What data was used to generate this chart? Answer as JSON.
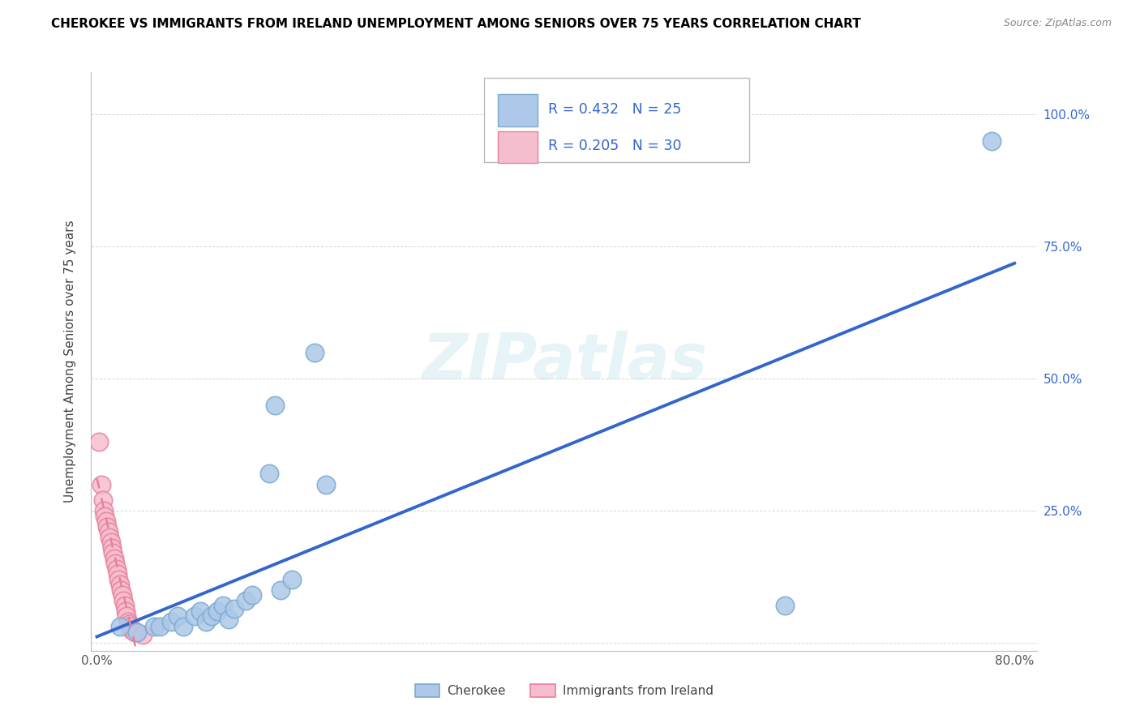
{
  "title": "CHEROKEE VS IMMIGRANTS FROM IRELAND UNEMPLOYMENT AMONG SENIORS OVER 75 YEARS CORRELATION CHART",
  "source": "Source: ZipAtlas.com",
  "ylabel": "Unemployment Among Seniors over 75 years",
  "xlim": [
    -0.005,
    0.82
  ],
  "ylim": [
    -0.015,
    1.08
  ],
  "xtick_vals": [
    0.0,
    0.2,
    0.4,
    0.6,
    0.8
  ],
  "xticklabels": [
    "0.0%",
    "",
    "",
    "",
    "80.0%"
  ],
  "ytick_vals": [
    0.0,
    0.25,
    0.5,
    0.75,
    1.0
  ],
  "yticklabels_right": [
    "",
    "25.0%",
    "50.0%",
    "75.0%",
    "100.0%"
  ],
  "watermark": "ZIPatlas",
  "cherokee_color": "#adc8e8",
  "cherokee_edge_color": "#7aaad0",
  "ireland_color": "#f5bece",
  "ireland_edge_color": "#e8809a",
  "blue_line_color": "#3366cc",
  "pink_line_color": "#e8809a",
  "grid_color": "#cccccc",
  "legend_box_color": "#adc8e8",
  "legend_box2_color": "#f5bece",
  "legend_text_color": "#3366cc",
  "cherokee_scatter_x": [
    0.02,
    0.035,
    0.05,
    0.055,
    0.065,
    0.07,
    0.075,
    0.085,
    0.09,
    0.095,
    0.1,
    0.105,
    0.11,
    0.115,
    0.12,
    0.13,
    0.135,
    0.15,
    0.155,
    0.16,
    0.17,
    0.19,
    0.2,
    0.6,
    0.78
  ],
  "cherokee_scatter_y": [
    0.03,
    0.02,
    0.03,
    0.03,
    0.04,
    0.05,
    0.03,
    0.05,
    0.06,
    0.04,
    0.05,
    0.06,
    0.07,
    0.045,
    0.065,
    0.08,
    0.09,
    0.32,
    0.45,
    0.1,
    0.12,
    0.55,
    0.3,
    0.07,
    0.95
  ],
  "ireland_scatter_x": [
    0.002,
    0.004,
    0.005,
    0.006,
    0.007,
    0.008,
    0.009,
    0.01,
    0.011,
    0.012,
    0.013,
    0.014,
    0.015,
    0.016,
    0.017,
    0.018,
    0.019,
    0.02,
    0.021,
    0.022,
    0.023,
    0.024,
    0.025,
    0.026,
    0.027,
    0.028,
    0.029,
    0.03,
    0.033,
    0.04
  ],
  "ireland_scatter_y": [
    0.38,
    0.3,
    0.27,
    0.25,
    0.24,
    0.23,
    0.22,
    0.21,
    0.2,
    0.19,
    0.18,
    0.17,
    0.16,
    0.15,
    0.14,
    0.13,
    0.12,
    0.11,
    0.1,
    0.09,
    0.08,
    0.07,
    0.06,
    0.05,
    0.04,
    0.035,
    0.03,
    0.025,
    0.02,
    0.015
  ],
  "legend_labels": [
    "Cherokee",
    "Immigrants from Ireland"
  ]
}
